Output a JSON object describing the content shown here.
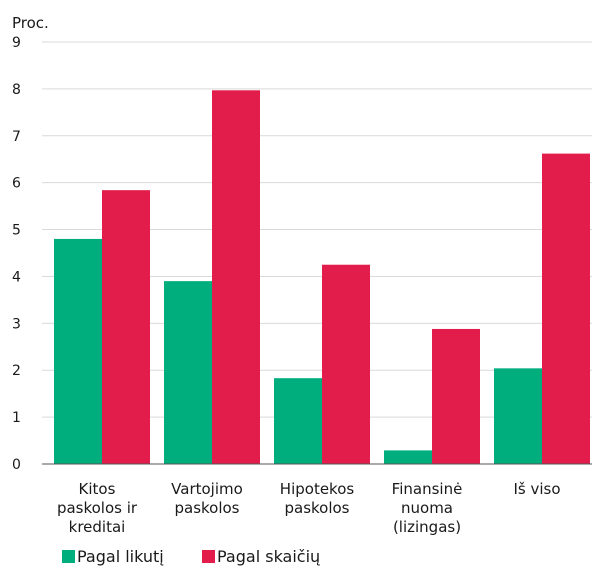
{
  "chart_data": {
    "type": "bar",
    "y_unit_label": "Proc.",
    "categories": [
      [
        "Kitos",
        "paskolos ir",
        "kreditai"
      ],
      [
        "Vartojimo",
        "paskolos"
      ],
      [
        "Hipotekos",
        "paskolos"
      ],
      [
        "Finansinė",
        "nuoma",
        "(lizingas)"
      ],
      [
        "Iš viso"
      ]
    ],
    "series": [
      {
        "name": "Pagal likutį",
        "color": "#00ad7c",
        "values": [
          4.8,
          3.9,
          1.83,
          0.29,
          2.04
        ]
      },
      {
        "name": "Pagal skaičių",
        "color": "#e31d4b",
        "values": [
          5.84,
          7.97,
          4.25,
          2.88,
          6.62
        ]
      }
    ],
    "ylim": [
      0,
      9
    ],
    "yticks": [
      0,
      1,
      2,
      3,
      4,
      5,
      6,
      7,
      8,
      9
    ],
    "grid": true,
    "gridline_color": "#d9d9d9",
    "legend_position": "bottom-left"
  }
}
